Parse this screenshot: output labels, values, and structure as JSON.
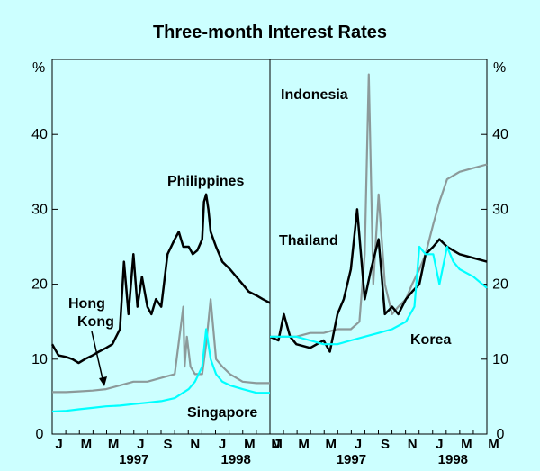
{
  "chart_data": {
    "title": "Three-month Interest Rates",
    "unit_left": "%",
    "unit_right": "%",
    "y_ticks": [
      "0",
      "10",
      "20",
      "30",
      "40"
    ],
    "ylim": [
      0,
      50
    ],
    "x_month_labels": [
      "J",
      "M",
      "M",
      "J",
      "S",
      "N",
      "J",
      "M",
      "M"
    ],
    "x_year_labels": [
      "1997",
      "1998"
    ],
    "xlim": [
      "1997-01",
      "1998-05"
    ],
    "panels": [
      {
        "type": "line",
        "series": [
          {
            "name": "Philippines",
            "color": "#000000",
            "x": [
              "1997-01-01",
              "1997-01-15",
              "1997-02-01",
              "1997-02-15",
              "1997-03-01",
              "1997-03-15",
              "1997-04-01",
              "1997-04-15",
              "1997-05-01",
              "1997-05-15",
              "1997-06-01",
              "1997-06-10",
              "1997-06-20",
              "1997-07-01",
              "1997-07-10",
              "1997-07-20",
              "1997-08-01",
              "1997-08-10",
              "1997-08-20",
              "1997-09-01",
              "1997-09-15",
              "1997-10-01",
              "1997-10-10",
              "1997-10-20",
              "1997-11-01",
              "1997-11-10",
              "1997-11-20",
              "1997-12-01",
              "1997-12-05",
              "1997-12-10",
              "1997-12-15",
              "1997-12-20",
              "1998-01-01",
              "1998-01-15",
              "1998-02-01",
              "1998-02-15",
              "1998-03-01",
              "1998-03-15",
              "1998-04-01",
              "1998-04-15",
              "1998-05-01"
            ],
            "y": [
              12,
              10.5,
              10.3,
              10,
              9.5,
              10,
              10.5,
              11,
              11.5,
              12,
              14,
              23,
              16,
              24,
              17,
              21,
              17,
              16,
              18,
              17,
              24,
              26,
              27,
              25,
              25,
              24,
              24.5,
              26,
              31,
              32,
              30,
              27,
              25,
              23,
              22,
              21,
              20,
              19,
              18.5,
              18,
              17.5
            ]
          },
          {
            "name": "Hong Kong",
            "color": "#8c9a9a",
            "x": [
              "1997-01-01",
              "1997-02-01",
              "1997-03-01",
              "1997-04-01",
              "1997-05-01",
              "1997-06-01",
              "1997-07-01",
              "1997-08-01",
              "1997-09-01",
              "1997-10-01",
              "1997-10-20",
              "1997-10-23",
              "1997-10-28",
              "1997-11-05",
              "1997-11-15",
              "1997-12-01",
              "1997-12-10",
              "1997-12-20",
              "1998-01-01",
              "1998-01-15",
              "1998-02-01",
              "1998-02-15",
              "1998-03-01",
              "1998-04-01",
              "1998-05-01"
            ],
            "y": [
              5.6,
              5.6,
              5.7,
              5.8,
              6,
              6.5,
              7,
              7,
              7.5,
              8,
              17,
              9,
              13,
              9,
              8,
              8,
              12,
              18,
              10,
              9,
              8,
              7.5,
              7,
              6.8,
              6.8
            ]
          },
          {
            "name": "Singapore",
            "color": "#00ffff",
            "x": [
              "1997-01-01",
              "1997-02-01",
              "1997-03-01",
              "1997-04-01",
              "1997-05-01",
              "1997-06-01",
              "1997-07-01",
              "1997-08-01",
              "1997-09-01",
              "1997-10-01",
              "1997-11-01",
              "1997-11-15",
              "1997-12-01",
              "1997-12-10",
              "1997-12-20",
              "1998-01-01",
              "1998-01-15",
              "1998-02-01",
              "1998-03-01",
              "1998-04-01",
              "1998-05-01"
            ],
            "y": [
              3,
              3.1,
              3.3,
              3.5,
              3.7,
              3.8,
              4,
              4.2,
              4.4,
              4.8,
              6,
              7,
              9,
              14,
              10,
              8,
              7,
              6.5,
              6,
              5.5,
              5.5
            ]
          }
        ]
      },
      {
        "type": "line",
        "series": [
          {
            "name": "Indonesia",
            "color": "#8c9a9a",
            "x": [
              "1997-01-01",
              "1997-02-01",
              "1997-03-01",
              "1997-04-01",
              "1997-05-01",
              "1997-06-01",
              "1997-07-01",
              "1997-07-20",
              "1997-08-01",
              "1997-08-10",
              "1997-08-20",
              "1997-09-01",
              "1997-09-15",
              "1997-10-01",
              "1997-10-15",
              "1997-11-01",
              "1997-11-15",
              "1997-12-01",
              "1997-12-15",
              "1998-01-01",
              "1998-01-15",
              "1998-02-01",
              "1998-03-01",
              "1998-04-01",
              "1998-05-01"
            ],
            "y": [
              13,
              13,
              13,
              13.5,
              13.5,
              14,
              14,
              15,
              24,
              48,
              20,
              32,
              20,
              16,
              17,
              18,
              20,
              22,
              24,
              28,
              31,
              34,
              35,
              35.5,
              36
            ]
          },
          {
            "name": "Thailand",
            "color": "#000000",
            "x": [
              "1997-01-01",
              "1997-01-20",
              "1997-02-01",
              "1997-02-15",
              "1997-03-01",
              "1997-04-01",
              "1997-05-01",
              "1997-05-15",
              "1997-06-01",
              "1997-06-15",
              "1997-07-01",
              "1997-07-15",
              "1997-08-01",
              "1997-08-15",
              "1997-09-01",
              "1997-09-15",
              "1997-10-01",
              "1997-10-15",
              "1997-11-01",
              "1997-11-15",
              "1997-12-01",
              "1997-12-15",
              "1998-01-01",
              "1998-01-15",
              "1998-02-01",
              "1998-03-01",
              "1998-04-01",
              "1998-05-01"
            ],
            "y": [
              13,
              12.5,
              16,
              13,
              12,
              11.5,
              12.5,
              11,
              16,
              18,
              22,
              30,
              18,
              22,
              26,
              16,
              17,
              16,
              18,
              19,
              20,
              24,
              25,
              26,
              25,
              24,
              23.5,
              23
            ]
          },
          {
            "name": "Korea",
            "color": "#00ffff",
            "x": [
              "1997-01-01",
              "1997-02-01",
              "1997-03-01",
              "1997-04-01",
              "1997-05-01",
              "1997-06-01",
              "1997-07-01",
              "1997-08-01",
              "1997-09-01",
              "1997-10-01",
              "1997-11-01",
              "1997-11-20",
              "1997-12-01",
              "1997-12-15",
              "1998-01-01",
              "1998-01-15",
              "1998-02-01",
              "1998-02-15",
              "1998-03-01",
              "1998-04-01",
              "1998-05-01"
            ],
            "y": [
              13,
              13,
              13,
              12.5,
              12,
              12,
              12.5,
              13,
              13.5,
              14,
              15,
              17,
              25,
              24,
              24,
              20,
              25,
              23,
              22,
              21,
              19.5
            ]
          }
        ]
      }
    ],
    "series_labels": [
      "Philippines",
      "Hong",
      "Kong",
      "Singapore",
      "Indonesia",
      "Thailand",
      "Korea"
    ]
  }
}
